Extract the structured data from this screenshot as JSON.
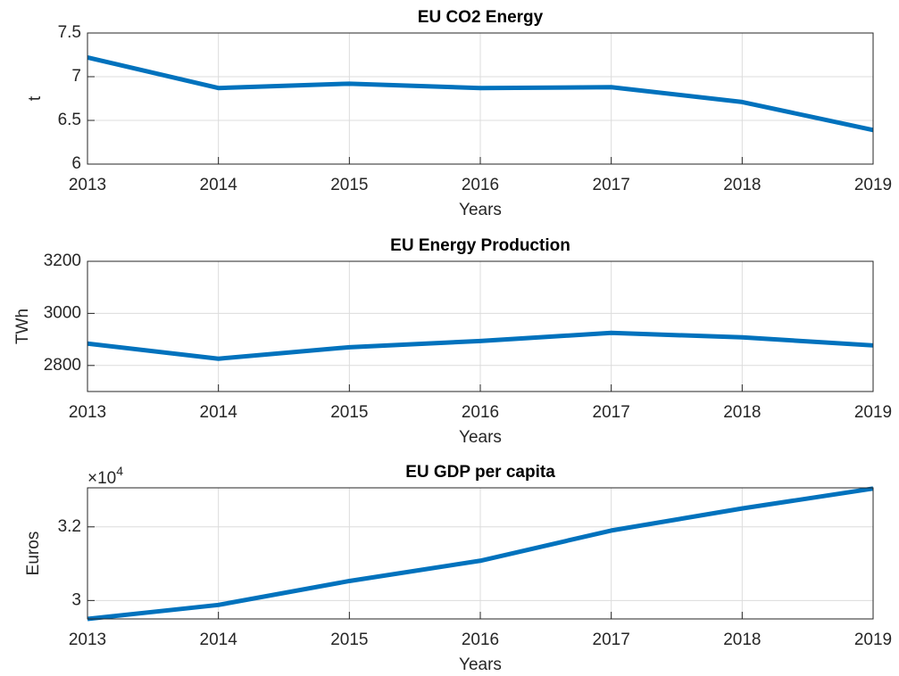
{
  "chart_data": [
    {
      "type": "line",
      "title": "EU CO2 Energy",
      "xlabel": "Years",
      "ylabel": "t",
      "x": [
        2013,
        2014,
        2015,
        2016,
        2017,
        2018,
        2019
      ],
      "series": [
        {
          "color": "#0072bd",
          "values": [
            7.22,
            6.87,
            6.92,
            6.87,
            6.88,
            6.71,
            6.39
          ]
        }
      ],
      "xlim": [
        2013,
        2019
      ],
      "xticks": [
        2013,
        2014,
        2015,
        2016,
        2017,
        2018,
        2019
      ],
      "ylim": [
        6,
        7.5
      ],
      "yticks": [
        6,
        6.5,
        7,
        7.5
      ],
      "grid": true
    },
    {
      "type": "line",
      "title": "EU Energy Production",
      "xlabel": "Years",
      "ylabel": "TWh",
      "x": [
        2013,
        2014,
        2015,
        2016,
        2017,
        2018,
        2019
      ],
      "series": [
        {
          "color": "#0072bd",
          "values": [
            2884,
            2826,
            2870,
            2894,
            2925,
            2908,
            2877
          ]
        }
      ],
      "xlim": [
        2013,
        2019
      ],
      "xticks": [
        2013,
        2014,
        2015,
        2016,
        2017,
        2018,
        2019
      ],
      "ylim": [
        2700,
        3200
      ],
      "yticks": [
        2800,
        3000,
        3200
      ],
      "grid": true
    },
    {
      "type": "line",
      "title": "EU GDP per capita",
      "xlabel": "Years",
      "ylabel": "Euros",
      "y_multiplier": {
        "base": "×10",
        "power": "4"
      },
      "x": [
        2013,
        2014,
        2015,
        2016,
        2017,
        2018,
        2019
      ],
      "series": [
        {
          "color": "#0072bd",
          "values": [
            29500,
            29880,
            30530,
            31080,
            31900,
            32500,
            33040
          ]
        }
      ],
      "xlim": [
        2013,
        2019
      ],
      "xticks": [
        2013,
        2014,
        2015,
        2016,
        2017,
        2018,
        2019
      ],
      "ylim": [
        29500,
        33060
      ],
      "yticks": [
        {
          "value": 30000,
          "label": "3"
        },
        {
          "value": 32000,
          "label": "3.2"
        }
      ],
      "grid": true
    }
  ]
}
